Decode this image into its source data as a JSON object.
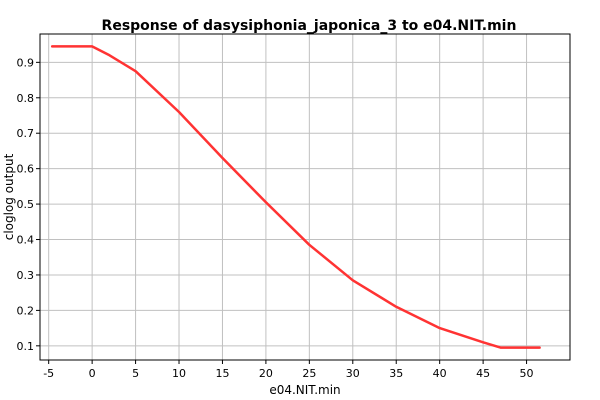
{
  "chart_data": {
    "type": "line",
    "title": "Response of dasysiphonia_japonica_3 to e04.NIT.min",
    "xlabel": "e04.NIT.min",
    "ylabel": "cloglog output",
    "xlim": [
      -6,
      55
    ],
    "ylim": [
      0.06,
      0.98
    ],
    "x_ticks": [
      -5,
      0,
      5,
      10,
      15,
      20,
      25,
      30,
      35,
      40,
      45,
      50
    ],
    "y_ticks": [
      0.1,
      0.2,
      0.3,
      0.4,
      0.5,
      0.6,
      0.7,
      0.8,
      0.9
    ],
    "x_tick_labels": [
      "-5",
      "0",
      "5",
      "10",
      "15",
      "20",
      "25",
      "30",
      "35",
      "40",
      "45",
      "50"
    ],
    "y_tick_labels": [
      "0.1",
      "0.2",
      "0.3",
      "0.4",
      "0.5",
      "0.6",
      "0.7",
      "0.8",
      "0.9"
    ],
    "grid": true,
    "series": [
      {
        "color": "#ff3333",
        "x": [
          -4.6,
          0,
          2,
          5,
          10,
          15,
          20,
          25,
          30,
          35,
          40,
          45,
          47,
          51.5
        ],
        "y": [
          0.945,
          0.945,
          0.92,
          0.875,
          0.76,
          0.63,
          0.505,
          0.385,
          0.285,
          0.21,
          0.15,
          0.11,
          0.095,
          0.095
        ]
      }
    ]
  }
}
